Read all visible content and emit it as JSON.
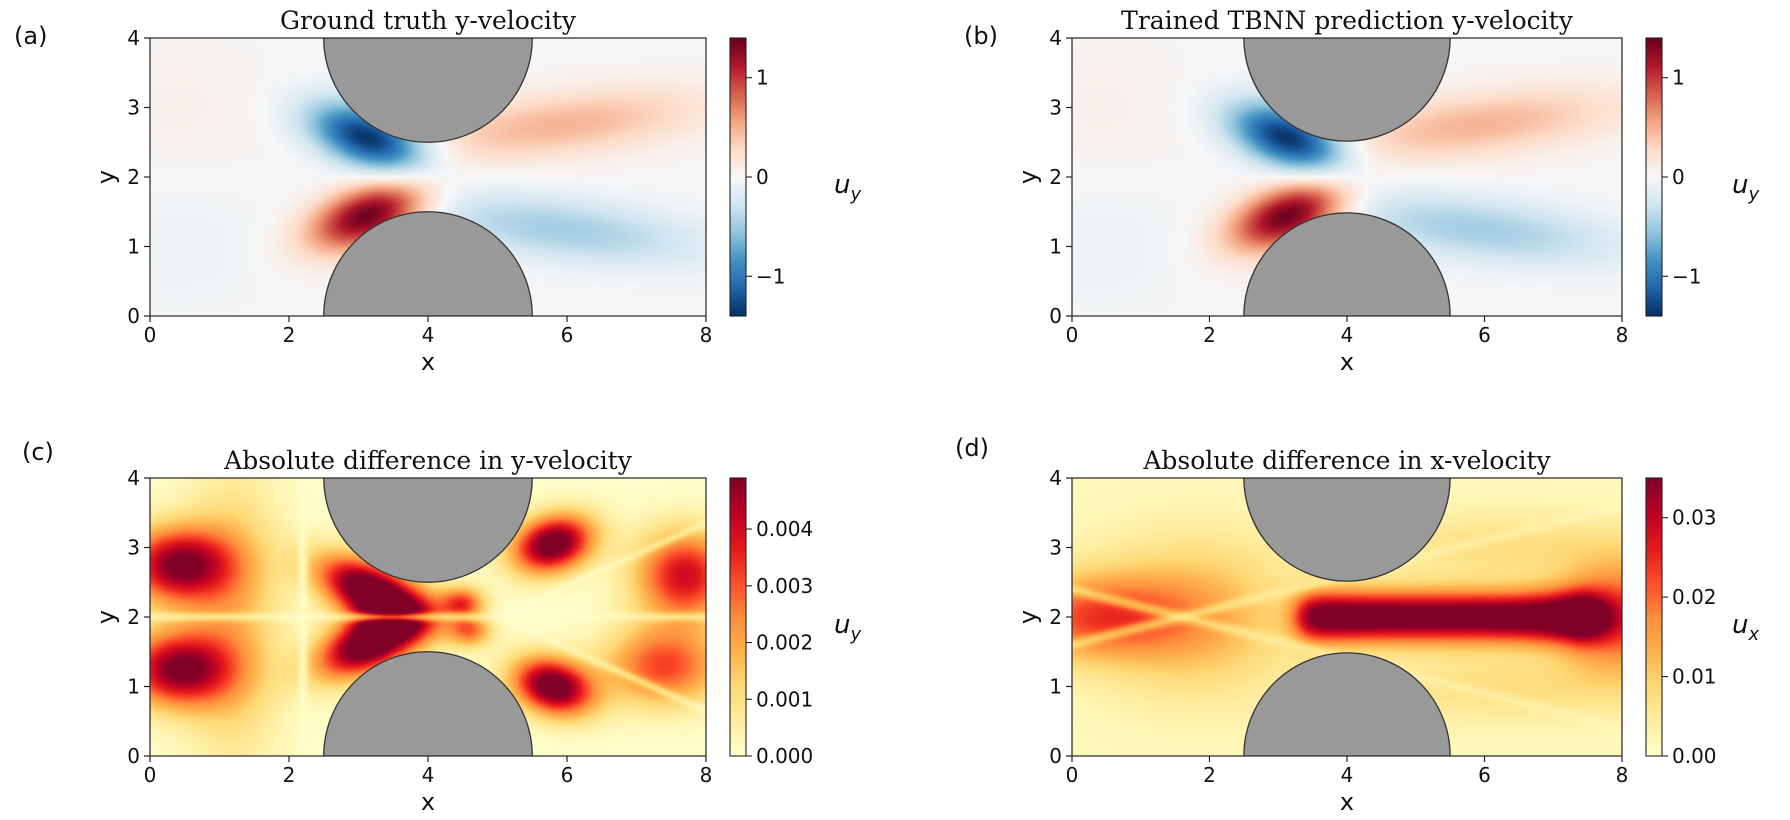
{
  "figure": {
    "colormaps": {
      "RdBu_r": [
        "#053061",
        "#2166ac",
        "#4393c3",
        "#92c5de",
        "#d1e5f0",
        "#f7f7f7",
        "#fddbc7",
        "#f4a582",
        "#d6604d",
        "#b2182b",
        "#67001f"
      ],
      "YlOrRd": [
        "#ffffcc",
        "#ffeda0",
        "#fed976",
        "#feb24c",
        "#fd8d3c",
        "#fc4e2a",
        "#e31a1c",
        "#bd0026",
        "#800026"
      ]
    },
    "obstacle_color": "#999999"
  },
  "chart_data": [
    {
      "type": "heatmap",
      "panel_label": "(a)",
      "title": "Ground truth y-velocity",
      "xlabel": "x",
      "ylabel": "y",
      "xlim": [
        0,
        8
      ],
      "ylim": [
        0,
        4
      ],
      "xticks": [
        "0",
        "2",
        "4",
        "6",
        "8"
      ],
      "yticks": [
        "0",
        "1",
        "2",
        "3",
        "4"
      ],
      "colormap": "RdBu_r",
      "field": "uy",
      "obstacles": [
        {
          "cx": 4,
          "cy": 4,
          "r": 1.5
        },
        {
          "cx": 4,
          "cy": 0,
          "r": 1.5
        }
      ],
      "colorbar": {
        "label": "u",
        "label_sub": "y",
        "vmin": -1.4,
        "vmax": 1.4,
        "ticks": [
          -1,
          0,
          1
        ],
        "tick_labels": [
          "−1",
          "0",
          "1"
        ]
      }
    },
    {
      "type": "heatmap",
      "panel_label": "(b)",
      "title": "Trained TBNN prediction y-velocity",
      "xlabel": "x",
      "ylabel": "y",
      "xlim": [
        0,
        8
      ],
      "ylim": [
        0,
        4
      ],
      "xticks": [
        "0",
        "2",
        "4",
        "6",
        "8"
      ],
      "yticks": [
        "0",
        "1",
        "2",
        "3",
        "4"
      ],
      "colormap": "RdBu_r",
      "field": "uy",
      "obstacles": [
        {
          "cx": 4,
          "cy": 4,
          "r": 1.5
        },
        {
          "cx": 4,
          "cy": 0,
          "r": 1.5
        }
      ],
      "colorbar": {
        "label": "u",
        "label_sub": "y",
        "vmin": -1.4,
        "vmax": 1.4,
        "ticks": [
          -1,
          0,
          1
        ],
        "tick_labels": [
          "−1",
          "0",
          "1"
        ]
      }
    },
    {
      "type": "heatmap",
      "panel_label": "(c)",
      "title": "Absolute difference in y-velocity",
      "xlabel": "x",
      "ylabel": "y",
      "xlim": [
        0,
        8
      ],
      "ylim": [
        0,
        4
      ],
      "xticks": [
        "0",
        "2",
        "4",
        "6",
        "8"
      ],
      "yticks": [
        "0",
        "1",
        "2",
        "3",
        "4"
      ],
      "colormap": "YlOrRd",
      "field": "diff_uy",
      "obstacles": [
        {
          "cx": 4,
          "cy": 4,
          "r": 1.5
        },
        {
          "cx": 4,
          "cy": 0,
          "r": 1.5
        }
      ],
      "colorbar": {
        "label": "u",
        "label_sub": "y",
        "vmin": 0,
        "vmax": 0.0049,
        "ticks": [
          0,
          0.001,
          0.002,
          0.003,
          0.004
        ],
        "tick_labels": [
          "0.000",
          "0.001",
          "0.002",
          "0.003",
          "0.004"
        ]
      }
    },
    {
      "type": "heatmap",
      "panel_label": "(d)",
      "title": "Absolute difference in x-velocity",
      "xlabel": "x",
      "ylabel": "y",
      "xlim": [
        0,
        8
      ],
      "ylim": [
        0,
        4
      ],
      "xticks": [
        "0",
        "2",
        "4",
        "6",
        "8"
      ],
      "yticks": [
        "0",
        "1",
        "2",
        "3",
        "4"
      ],
      "colormap": "YlOrRd",
      "field": "diff_ux",
      "obstacles": [
        {
          "cx": 4,
          "cy": 4,
          "r": 1.5
        },
        {
          "cx": 4,
          "cy": 0,
          "r": 1.5
        }
      ],
      "colorbar": {
        "label": "u",
        "label_sub": "x",
        "vmin": 0,
        "vmax": 0.035,
        "ticks": [
          0,
          0.01,
          0.02,
          0.03
        ],
        "tick_labels": [
          "0.00",
          "0.01",
          "0.02",
          "0.03"
        ]
      }
    }
  ]
}
